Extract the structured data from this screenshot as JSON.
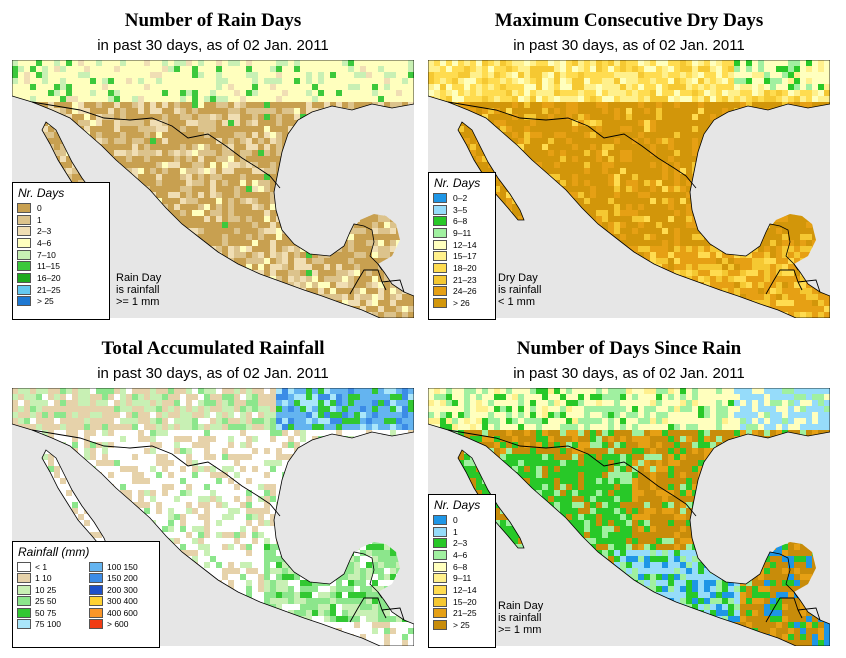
{
  "panels": [
    {
      "title": "Number of Rain Days",
      "subtitle": "in past 30 days, as of  02 Jan. 2011",
      "theme": "raindays",
      "legend_title": "Nr. Days",
      "legend": [
        {
          "label": "0",
          "color": "#c8a050"
        },
        {
          "label": "1",
          "color": "#dcc38c"
        },
        {
          "label": "2–3",
          "color": "#f0deb4"
        },
        {
          "label": "4–6",
          "color": "#ffffbe"
        },
        {
          "label": "7–10",
          "color": "#c8f0b4"
        },
        {
          "label": "11–15",
          "color": "#3cc83c"
        },
        {
          "label": "16–20",
          "color": "#1eaa1e"
        },
        {
          "label": "21–25",
          "color": "#64c8f0"
        },
        {
          "label": "> 25",
          "color": "#1e78d2"
        }
      ],
      "note": [
        "Rain Day",
        "is rainfall",
        ">= 1 mm"
      ]
    },
    {
      "title": "Maximum Consecutive Dry Days",
      "subtitle": "in past 30 days, as of  02 Jan. 2011",
      "theme": "drydays",
      "legend_title": "Nr. Days",
      "legend": [
        {
          "label": "0–2",
          "color": "#1e96e6"
        },
        {
          "label": "3–5",
          "color": "#96dcfa"
        },
        {
          "label": "6–8",
          "color": "#28c828"
        },
        {
          "label": "9–11",
          "color": "#a0f0a0"
        },
        {
          "label": "12–14",
          "color": "#ffffbe"
        },
        {
          "label": "15–17",
          "color": "#fff08c"
        },
        {
          "label": "18–20",
          "color": "#ffdc50"
        },
        {
          "label": "21–23",
          "color": "#f5c832"
        },
        {
          "label": "24–26",
          "color": "#e6a014"
        },
        {
          "label": "> 26",
          "color": "#d2960a"
        }
      ],
      "note": [
        "Dry Day",
        "is rainfall",
        "< 1 mm"
      ]
    },
    {
      "title": "Total Accumulated Rainfall",
      "subtitle": "in past 30 days, as of  02 Jan. 2011",
      "theme": "rainfall",
      "legend_title": "Rainfall (mm)",
      "legend_left": [
        {
          "label": "< 1",
          "color": "#ffffff"
        },
        {
          "label": "1   10",
          "color": "#e6d2aa"
        },
        {
          "label": "10   25",
          "color": "#c8f0b4"
        },
        {
          "label": "25   50",
          "color": "#8ce68c"
        },
        {
          "label": "50   75",
          "color": "#32c832"
        },
        {
          "label": "75   100",
          "color": "#aae6fa"
        }
      ],
      "legend_right": [
        {
          "label": "100  150",
          "color": "#64b4f0"
        },
        {
          "label": "150  200",
          "color": "#3c8ce6"
        },
        {
          "label": "200  300",
          "color": "#1e50c8"
        },
        {
          "label": "300  400",
          "color": "#ffd232"
        },
        {
          "label": "400  600",
          "color": "#fa9628"
        },
        {
          "label": "> 600",
          "color": "#f03c14"
        }
      ]
    },
    {
      "title": "Number of Days Since Rain",
      "subtitle": "in past 30 days, as of  02 Jan. 2011",
      "theme": "sincerain",
      "legend_title": "Nr. Days",
      "legend": [
        {
          "label": "0",
          "color": "#1e96e6"
        },
        {
          "label": "1",
          "color": "#96dcfa"
        },
        {
          "label": "2–3",
          "color": "#28c828"
        },
        {
          "label": "4–6",
          "color": "#a0f0a0"
        },
        {
          "label": "6–8",
          "color": "#ffffbe"
        },
        {
          "label": "9–11",
          "color": "#fff08c"
        },
        {
          "label": "12–14",
          "color": "#ffdc50"
        },
        {
          "label": "15–20",
          "color": "#f5c832"
        },
        {
          "label": "21–25",
          "color": "#e6a014"
        },
        {
          "label": "> 25",
          "color": "#c88c0a"
        }
      ],
      "note": [
        "Rain Day",
        "is rainfall",
        ">= 1 mm"
      ]
    }
  ],
  "colors": {
    "water": "#e6e6e6",
    "border": "#000000"
  }
}
